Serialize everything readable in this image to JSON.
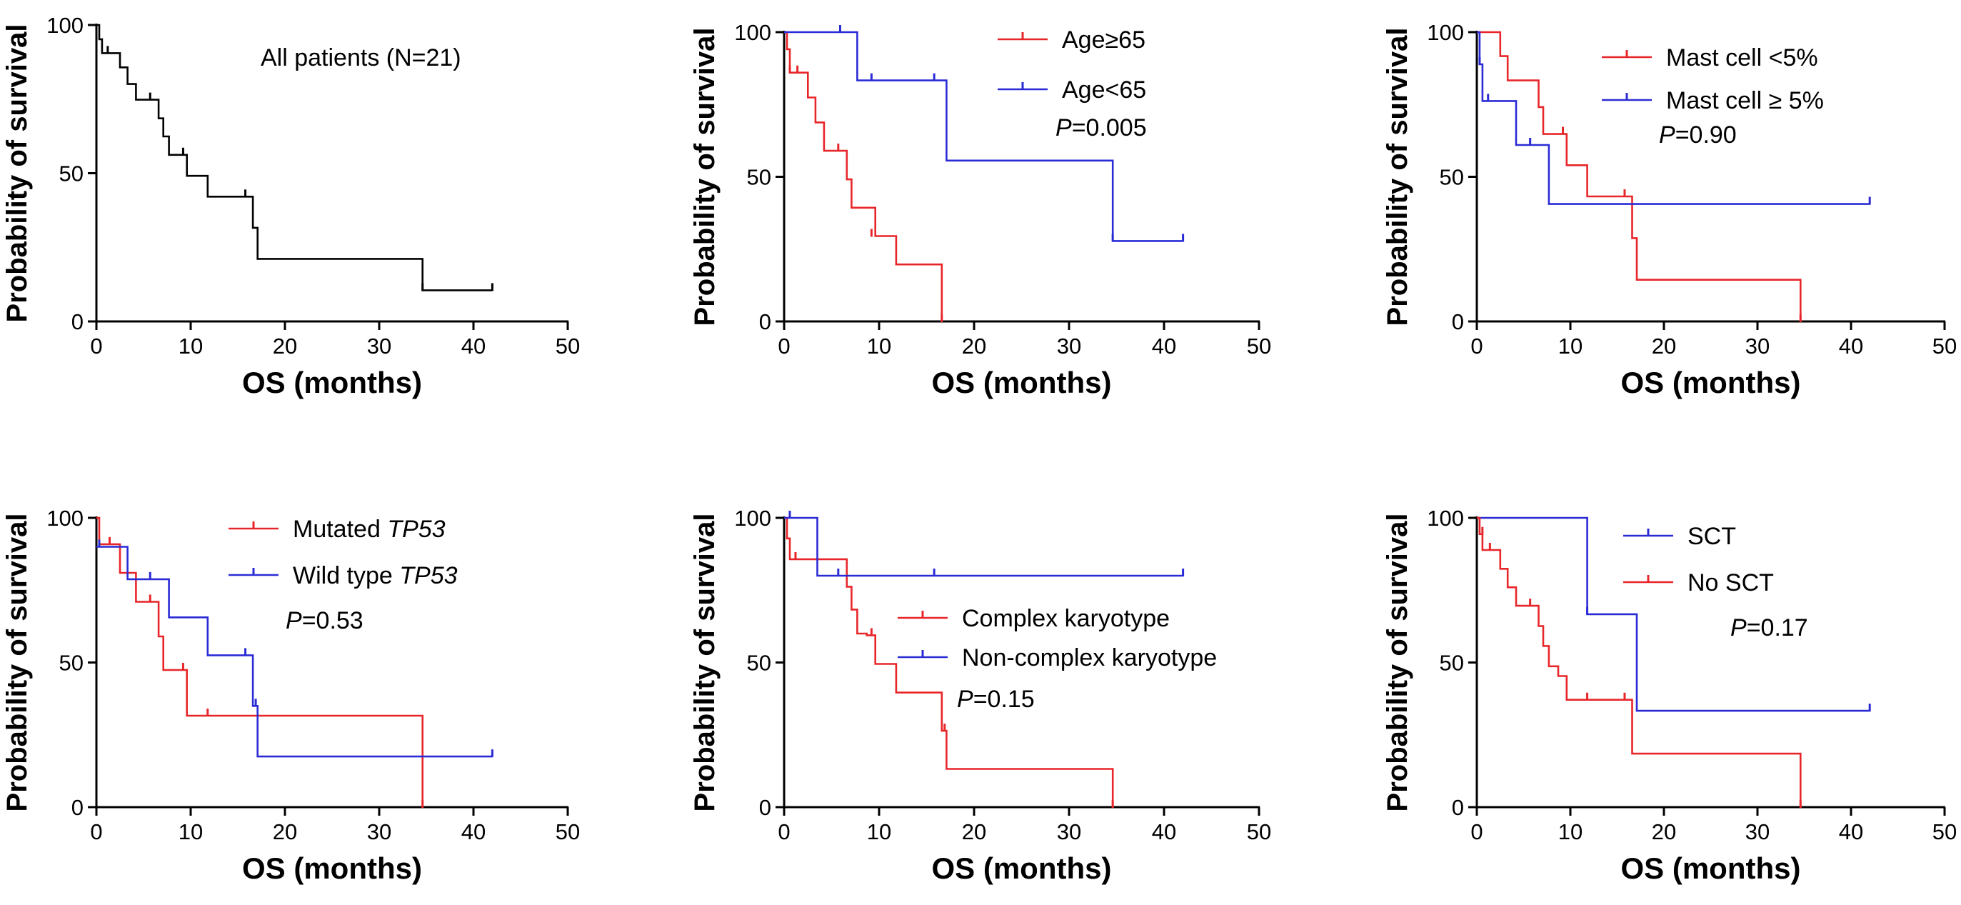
{
  "figure_colors": {
    "black": "#000000",
    "red": "#e8262a",
    "blue": "#2b2bd6"
  },
  "chart_data": [
    {
      "type": "line",
      "id": "all",
      "xlabel": "OS (months)",
      "ylabel": "Probability of survival",
      "xlim": [
        0,
        50
      ],
      "ylim": [
        0,
        100
      ],
      "x_ticks": [
        0,
        10,
        20,
        30,
        40,
        50
      ],
      "y_ticks": [
        0,
        50,
        100
      ],
      "legend": [
        {
          "label": "All patients (N=21)",
          "italic_suffix": "",
          "marker": false
        }
      ],
      "p_value": null,
      "series": [
        {
          "name": "All patients (N=21)",
          "color": "#000000",
          "x": [
            0,
            0.3,
            0.6,
            1.2,
            2.5,
            3.3,
            4.2,
            5.7,
            6.6,
            7.1,
            7.7,
            9.2,
            9.6,
            11.8,
            16.6,
            17.1,
            34.6,
            42
          ],
          "y": [
            100,
            95.2,
            90.5,
            90.5,
            85.7,
            80.1,
            74.8,
            74.8,
            68.5,
            62.4,
            56.2,
            56.2,
            49.1,
            42.1,
            31.6,
            21.1,
            10.5,
            10.5
          ],
          "censor_x": [
            1.2,
            5.7,
            9.2,
            15.8,
            34.6,
            42
          ],
          "censor_y": [
            90.5,
            74.8,
            56.2,
            42.1,
            10.5,
            10.5
          ]
        }
      ]
    },
    {
      "type": "line",
      "id": "age",
      "xlabel": "OS (months)",
      "ylabel": "Probability of survival",
      "xlim": [
        0,
        50
      ],
      "ylim": [
        0,
        100
      ],
      "x_ticks": [
        0,
        10,
        20,
        30,
        40,
        50
      ],
      "y_ticks": [
        0,
        50,
        100
      ],
      "legend": [
        {
          "label": "Age≥65",
          "italic_suffix": "",
          "marker": true,
          "color": "#e8262a"
        },
        {
          "label": "Age<65",
          "italic_suffix": "",
          "marker": true,
          "color": "#2b2bd6"
        }
      ],
      "p_value": "=0.005",
      "series": [
        {
          "name": "Age≥65",
          "color": "#e8262a",
          "x": [
            0,
            0.3,
            0.6,
            2.5,
            3.3,
            4.2,
            6.6,
            7.1,
            9.6,
            11.8,
            16.6
          ],
          "y": [
            100,
            94.1,
            86.0,
            77.4,
            68.8,
            59.0,
            49.1,
            39.3,
            29.5,
            19.7,
            0
          ],
          "censor_x": [
            0.6,
            1.4,
            5.7,
            9.2,
            16.6
          ],
          "censor_y": [
            86.0,
            86.0,
            59.0,
            29.5,
            0
          ]
        },
        {
          "name": "Age<65",
          "color": "#2b2bd6",
          "x": [
            0,
            7.7,
            17.1,
            34.6,
            42
          ],
          "y": [
            100,
            83.3,
            55.6,
            27.8,
            27.8
          ],
          "censor_x": [
            5.9,
            9.2,
            15.8,
            34.6,
            42
          ],
          "censor_y": [
            100,
            83.3,
            83.3,
            27.8,
            27.8
          ]
        }
      ]
    },
    {
      "type": "line",
      "id": "mast",
      "xlabel": "OS (months)",
      "ylabel": "Probability of survival",
      "xlim": [
        0,
        50
      ],
      "ylim": [
        0,
        100
      ],
      "x_ticks": [
        0,
        10,
        20,
        30,
        40,
        50
      ],
      "y_ticks": [
        0,
        50,
        100
      ],
      "legend": [
        {
          "label": "Mast cell <5%",
          "italic_suffix": "",
          "marker": true,
          "color": "#e8262a"
        },
        {
          "label": "Mast cell ≥ 5%",
          "italic_suffix": "",
          "marker": true,
          "color": "#2b2bd6"
        }
      ],
      "p_value": "=0.90",
      "series": [
        {
          "name": "Mast cell <5%",
          "color": "#e8262a",
          "x": [
            0,
            2.5,
            3.3,
            6.6,
            7.1,
            9.6,
            11.8,
            16.6,
            17.1,
            34.6
          ],
          "y": [
            100,
            91.7,
            83.3,
            74.1,
            64.8,
            54.0,
            43.2,
            28.8,
            14.4,
            0
          ],
          "censor_x": [
            9.2,
            15.8,
            34.6
          ],
          "censor_y": [
            64.8,
            43.2,
            0
          ]
        },
        {
          "name": "Mast cell ≥ 5%",
          "color": "#2b2bd6",
          "x": [
            0,
            0.3,
            0.6,
            4.2,
            7.7,
            42
          ],
          "y": [
            100,
            88.9,
            76.2,
            61.0,
            40.6,
            40.6
          ],
          "censor_x": [
            0.3,
            1.2,
            5.7,
            42
          ],
          "censor_y": [
            88.9,
            76.2,
            61.0,
            40.6
          ]
        }
      ]
    },
    {
      "type": "line",
      "id": "tp53",
      "xlabel": "OS (months)",
      "ylabel": "Probability of survival",
      "xlim": [
        0,
        50
      ],
      "ylim": [
        0,
        100
      ],
      "x_ticks": [
        0,
        10,
        20,
        30,
        40,
        50
      ],
      "y_ticks": [
        0,
        50,
        100
      ],
      "legend": [
        {
          "label": "Mutated ",
          "italic_suffix": "TP53",
          "marker": true,
          "color": "#e8262a"
        },
        {
          "label": "Wild type ",
          "italic_suffix": "TP53",
          "marker": true,
          "color": "#2b2bd6"
        }
      ],
      "p_value": "=0.53",
      "series": [
        {
          "name": "Mutated TP53",
          "color": "#e8262a",
          "x": [
            0,
            0.3,
            0.6,
            2.5,
            4.2,
            6.6,
            7.1,
            8.1,
            9.6,
            34.6
          ],
          "y": [
            100,
            90.9,
            90.9,
            81.0,
            71.0,
            59.0,
            47.4,
            47.4,
            31.6,
            0
          ],
          "censor_x": [
            1.4,
            5.7,
            9.2,
            11.8,
            34.6
          ],
          "censor_y": [
            90.9,
            71.0,
            47.4,
            31.6,
            0
          ]
        },
        {
          "name": "Wild type TP53",
          "color": "#2b2bd6",
          "x": [
            0,
            3.3,
            7.7,
            11.8,
            16.6,
            17.1,
            42
          ],
          "y": [
            90,
            78.8,
            65.6,
            52.5,
            35.0,
            17.5,
            17.5
          ],
          "censor_x": [
            0.3,
            5.7,
            15.8,
            16.9,
            42
          ],
          "censor_y": [
            90,
            78.8,
            52.5,
            35.0,
            17.5
          ]
        }
      ]
    },
    {
      "type": "line",
      "id": "karyo",
      "xlabel": "OS (months)",
      "ylabel": "Probability of survival",
      "xlim": [
        0,
        50
      ],
      "ylim": [
        0,
        100
      ],
      "x_ticks": [
        0,
        10,
        20,
        30,
        40,
        50
      ],
      "y_ticks": [
        0,
        50,
        100
      ],
      "legend": [
        {
          "label": "Complex karyotype",
          "italic_suffix": "",
          "marker": true,
          "color": "#e8262a"
        },
        {
          "label": "Non-complex karyotype",
          "italic_suffix": "",
          "marker": true,
          "color": "#2b2bd6"
        }
      ],
      "p_value": "=0.15",
      "series": [
        {
          "name": "Complex karyotype",
          "color": "#e8262a",
          "x": [
            0,
            0.3,
            0.6,
            6.6,
            7.1,
            7.7,
            8.7,
            9.6,
            11.8,
            16.6,
            17.1,
            34.6
          ],
          "y": [
            100,
            92.9,
            85.7,
            76.2,
            68.3,
            60.0,
            59.4,
            49.5,
            39.6,
            26.4,
            13.2,
            0
          ],
          "censor_x": [
            1.2,
            9.2,
            16.9,
            34.6
          ],
          "censor_y": [
            85.7,
            59.4,
            26.4,
            0
          ]
        },
        {
          "name": "Non-complex karyotype",
          "color": "#2b2bd6",
          "x": [
            0,
            3.5,
            42
          ],
          "y": [
            100,
            80,
            80
          ],
          "censor_x": [
            0.6,
            5.7,
            15.8,
            42
          ],
          "censor_y": [
            100,
            80,
            80,
            80
          ]
        }
      ]
    },
    {
      "type": "line",
      "id": "sct",
      "xlabel": "OS (months)",
      "ylabel": "Probability of survival",
      "xlim": [
        0,
        50
      ],
      "ylim": [
        0,
        100
      ],
      "x_ticks": [
        0,
        10,
        20,
        30,
        40,
        50
      ],
      "y_ticks": [
        0,
        50,
        100
      ],
      "legend": [
        {
          "label": "SCT",
          "italic_suffix": "",
          "marker": true,
          "color": "#2b2bd6"
        },
        {
          "label": "No SCT",
          "italic_suffix": "",
          "marker": true,
          "color": "#e8262a"
        }
      ],
      "p_value": "=0.17",
      "series": [
        {
          "name": "SCT",
          "color": "#2b2bd6",
          "x": [
            0,
            11.8,
            17.1,
            42
          ],
          "y": [
            100,
            66.7,
            33.3,
            33.3
          ],
          "censor_x": [
            11.8,
            42
          ],
          "censor_y": [
            66.7,
            33.3
          ]
        },
        {
          "name": "No SCT",
          "color": "#e8262a",
          "x": [
            0,
            0.3,
            0.6,
            2.5,
            3.3,
            4.2,
            6.6,
            7.1,
            7.7,
            8.7,
            9.6,
            16.6,
            34.6
          ],
          "y": [
            100,
            94.4,
            88.9,
            82.4,
            76.0,
            69.6,
            62.6,
            55.7,
            48.7,
            45.3,
            37.1,
            18.5,
            0
          ],
          "censor_x": [
            0.6,
            1.4,
            5.7,
            11.8,
            15.8,
            34.6
          ],
          "censor_y": [
            94.4,
            88.9,
            69.6,
            37.1,
            37.1,
            0
          ]
        }
      ]
    }
  ]
}
